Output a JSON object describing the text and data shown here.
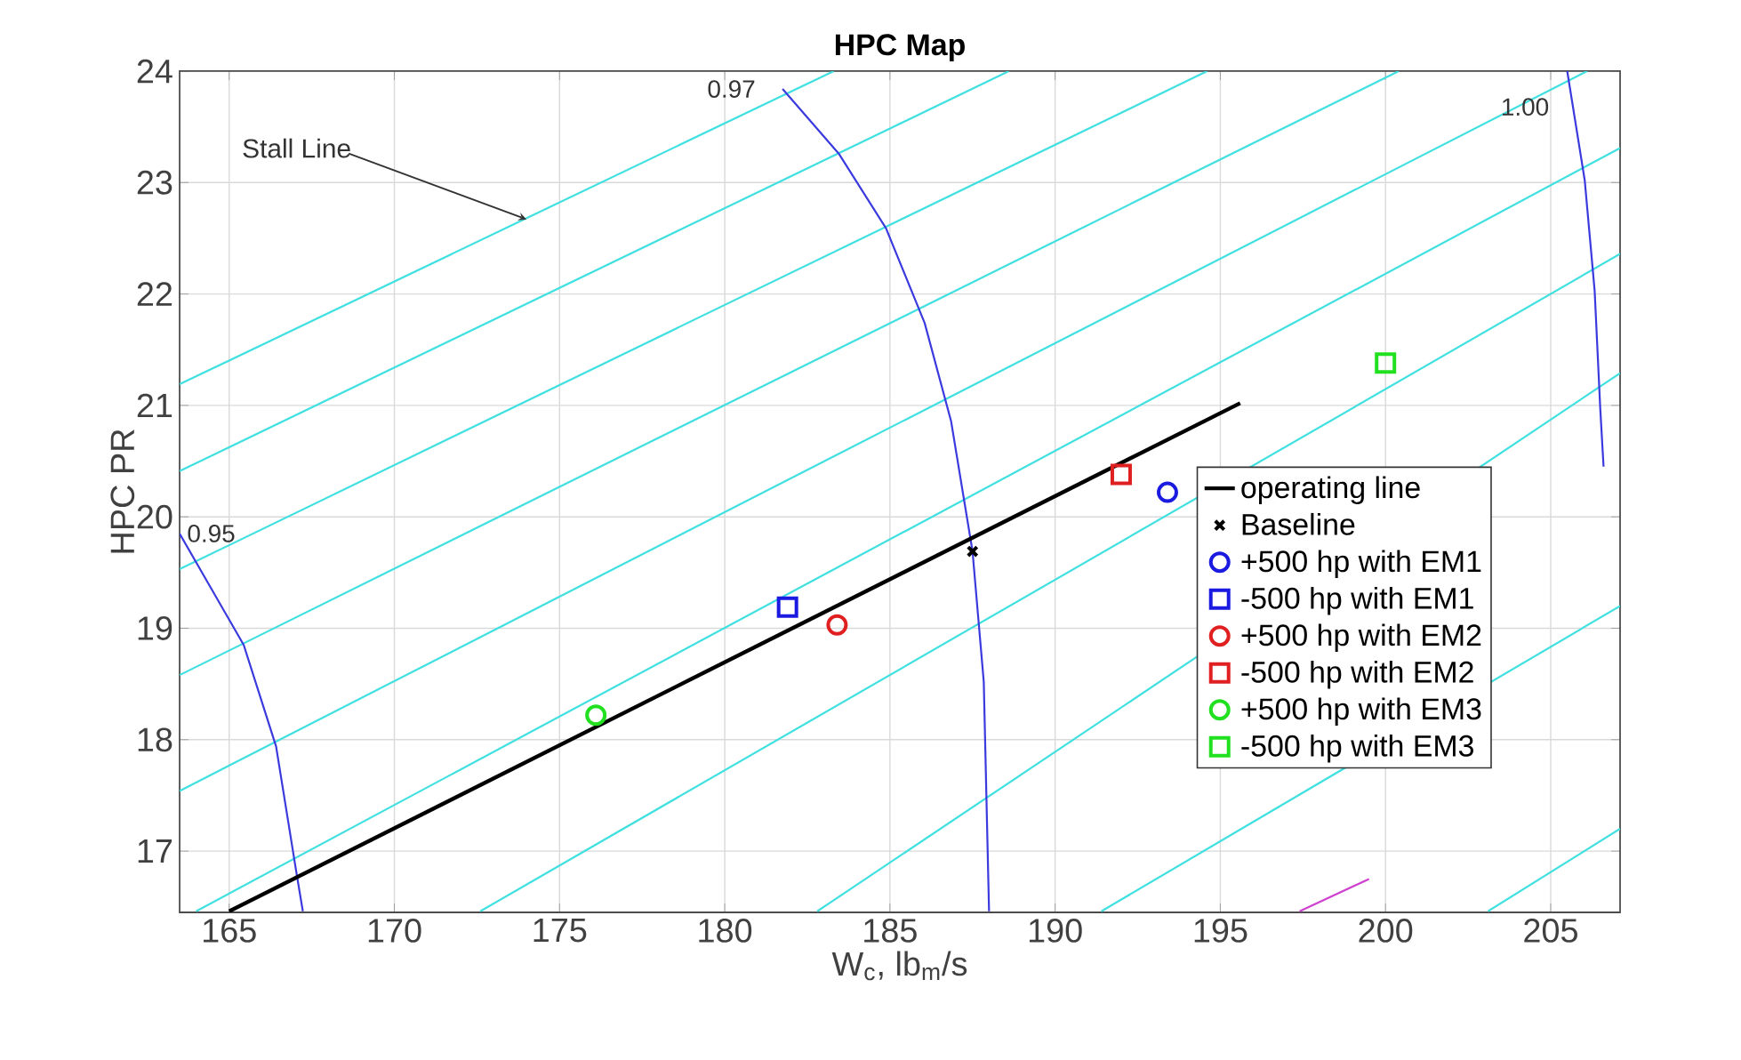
{
  "chart_data": {
    "type": "line",
    "title": "HPC Map",
    "xlabel": "W$_{c}$, lb$_{m}$/s",
    "ylabel": "HPC PR",
    "xlim": [
      163.5,
      207.1
    ],
    "ylim": [
      16.45,
      24
    ],
    "xticks": [
      165,
      170,
      175,
      180,
      185,
      190,
      195,
      200,
      205
    ],
    "yticks": [
      17,
      18,
      19,
      20,
      21,
      22,
      23,
      24
    ],
    "grid": true,
    "legend": "right",
    "annotations": [
      {
        "text": "Stall Line",
        "x": 174.0,
        "y": 22.67
      },
      {
        "text": "0.95",
        "x": 163.5,
        "y": 19.85
      },
      {
        "text": "0.97",
        "x": 181.75,
        "y": 23.84
      },
      {
        "text": "1.00",
        "x": 205.5,
        "y": 24
      }
    ],
    "series": [
      {
        "color": "#40e0e0",
        "x": [
          163.5,
          183.3
        ],
        "values": [
          21.19,
          24
        ]
      },
      {
        "color": "#40e0e0",
        "x": [
          163.5,
          188.6
        ],
        "values": [
          20.41,
          24
        ]
      },
      {
        "color": "#40e0e0",
        "x": [
          163.5,
          194.6
        ],
        "values": [
          19.53,
          24
        ]
      },
      {
        "color": "#40e0e0",
        "x": [
          163.5,
          200.4
        ],
        "values": [
          18.58,
          24
        ]
      },
      {
        "color": "#40e0e0",
        "x": [
          163.5,
          206.1
        ],
        "values": [
          17.54,
          24
        ]
      },
      {
        "color": "#40e0e0",
        "x": [
          164.0,
          207.1
        ],
        "values": [
          16.46,
          23.31
        ]
      },
      {
        "color": "#40e0e0",
        "x": [
          172.6,
          207.1
        ],
        "values": [
          16.46,
          22.36
        ]
      },
      {
        "color": "#40e0e0",
        "x": [
          182.8,
          207.1
        ],
        "values": [
          16.46,
          21.29
        ]
      },
      {
        "color": "#40e0e0",
        "x": [
          191.4,
          207.1
        ],
        "values": [
          16.46,
          19.2
        ]
      },
      {
        "color": "#40e0e0",
        "x": [
          203.1,
          207.1
        ],
        "values": [
          16.46,
          17.2
        ]
      },
      {
        "color": "#d040d0",
        "x": [
          197.4,
          199.5
        ],
        "values": [
          16.46,
          16.75
        ]
      },
      {
        "color": "#3a3adf",
        "x": [
          163.5,
          165.44,
          166.42,
          167.05,
          167.23
        ],
        "values": [
          19.85,
          18.85,
          17.94,
          16.78,
          16.46
        ]
      },
      {
        "color": "#3a3adf",
        "x": [
          181.75,
          183.45,
          184.88,
          186.05,
          186.85,
          187.5,
          187.84,
          188.0
        ],
        "values": [
          23.84,
          23.26,
          22.59,
          21.74,
          20.86,
          19.69,
          18.52,
          16.46
        ]
      },
      {
        "color": "#3a3adf",
        "x": [
          205.5,
          206.03,
          206.33,
          206.5,
          206.6
        ],
        "values": [
          24,
          23.02,
          22.03,
          20.97,
          20.45
        ]
      },
      {
        "name": "operating line",
        "color": "#000000",
        "x": [
          165.0,
          195.6
        ],
        "values": [
          16.46,
          21.02
        ]
      },
      {
        "type": "scatter",
        "name": "Baseline",
        "color": "#000000",
        "marker": "cross",
        "x": [
          187.5
        ],
        "values": [
          19.69
        ]
      },
      {
        "type": "scatter",
        "name": "+500 hp with EM1",
        "color": "#1a1ae0",
        "marker": "circle",
        "x": [
          193.4
        ],
        "values": [
          20.22
        ]
      },
      {
        "type": "scatter",
        "name": "-500 hp with EM1",
        "color": "#1a1ae0",
        "marker": "square",
        "x": [
          181.9
        ],
        "values": [
          19.19
        ]
      },
      {
        "type": "scatter",
        "name": "+500 hp with EM2",
        "color": "#e02020",
        "marker": "circle",
        "x": [
          183.4
        ],
        "values": [
          19.03
        ]
      },
      {
        "type": "scatter",
        "name": "-500 hp with EM2",
        "color": "#e02020",
        "marker": "square",
        "x": [
          192.0
        ],
        "values": [
          20.38
        ]
      },
      {
        "type": "scatter",
        "name": "+500 hp with EM3",
        "color": "#20e020",
        "marker": "circle",
        "x": [
          176.1
        ],
        "values": [
          18.22
        ]
      },
      {
        "type": "scatter",
        "name": "-500 hp with EM3",
        "color": "#20e020",
        "marker": "square",
        "x": [
          200.0
        ],
        "values": [
          21.38
        ]
      }
    ]
  }
}
